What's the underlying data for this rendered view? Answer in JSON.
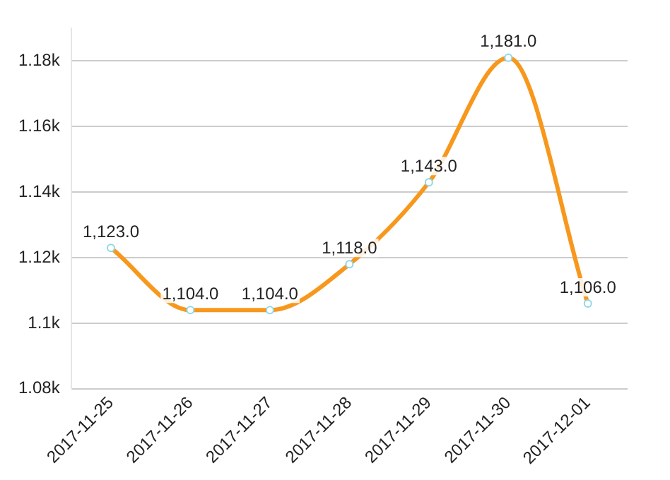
{
  "chart_data": {
    "type": "line",
    "categories": [
      "2017-11-25",
      "2017-11-26",
      "2017-11-27",
      "2017-11-28",
      "2017-11-29",
      "2017-11-30",
      "2017-12-01"
    ],
    "series": [
      {
        "color": "#f7981d",
        "values": [
          1123,
          1104,
          1104,
          1118,
          1143,
          1181,
          1106
        ],
        "value_labels": [
          "1,123.0",
          "1,104.0",
          "1,104.0",
          "1,118.0",
          "1,143.0",
          "1,181.0",
          "1,106.0"
        ]
      }
    ],
    "ylim": [
      1080,
      1190
    ],
    "yticks": [
      {
        "value": 1080,
        "label": "1.08k"
      },
      {
        "value": 1100,
        "label": "1.1k"
      },
      {
        "value": 1120,
        "label": "1.12k"
      },
      {
        "value": 1140,
        "label": "1.14k"
      },
      {
        "value": 1160,
        "label": "1.16k"
      },
      {
        "value": 1180,
        "label": "1.18k"
      }
    ],
    "grid": "y",
    "marker": "circle",
    "line_style": "solid",
    "legend": false
  }
}
